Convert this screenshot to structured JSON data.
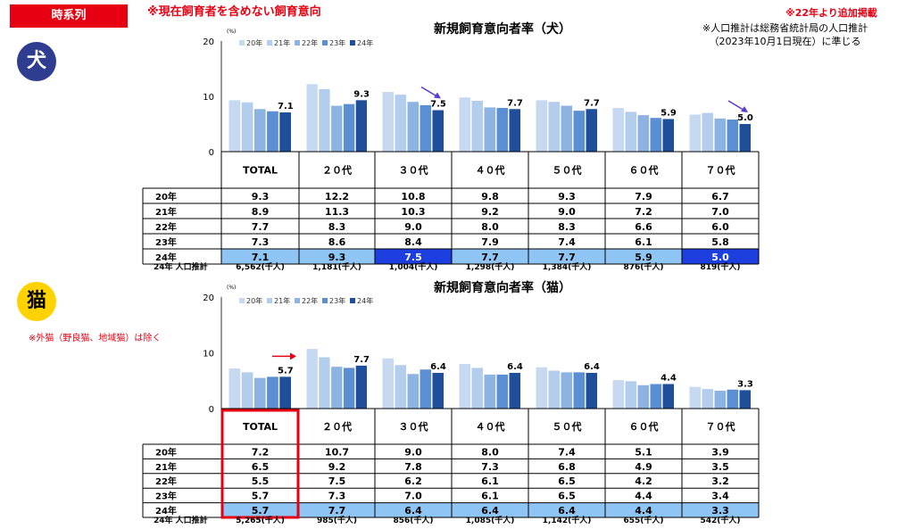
{
  "header": {
    "tag_label": "時系列",
    "note_top": "※現在飼育者を含めない飼育意向",
    "note_added": "※22年より追加掲載",
    "note_population": [
      "※人口推計は総務省統計局の人口推計",
      "（2023年10月1日現在）に準じる"
    ]
  },
  "dog": {
    "icon_label": "犬"
  },
  "cat": {
    "icon_label": "猫",
    "note": "※外猫（野良猫、地域猫）は除く"
  },
  "colors": {
    "series": [
      "#c6d9f1",
      "#b3cdec",
      "#8db3e2",
      "#5a8fd4",
      "#1f4e9a"
    ],
    "highlight_light": "#8fc5f4",
    "highlight_dark": "#1e3fe0",
    "arrow_blue": "#5b37d6",
    "arrow_red": "#e60012",
    "frame_red": "#e60012"
  },
  "chart_data": [
    {
      "type": "bar",
      "title": "新規飼育意向者率（犬）",
      "unit": "(%)",
      "ylim": [
        0,
        20
      ],
      "yticks": [
        0,
        10,
        20
      ],
      "categories": [
        "TOTAL",
        "２０代",
        "３０代",
        "４０代",
        "５０代",
        "６０代",
        "７０代"
      ],
      "series": [
        {
          "name": "20年",
          "values": [
            9.3,
            12.2,
            10.8,
            9.8,
            9.3,
            7.9,
            6.7
          ]
        },
        {
          "name": "21年",
          "values": [
            8.9,
            11.3,
            10.3,
            9.2,
            9.0,
            7.2,
            7.0
          ]
        },
        {
          "name": "22年",
          "values": [
            7.7,
            8.3,
            9.0,
            8.0,
            8.3,
            6.6,
            6.0
          ]
        },
        {
          "name": "23年",
          "values": [
            7.3,
            8.6,
            8.4,
            7.9,
            7.4,
            6.1,
            5.8
          ]
        },
        {
          "name": "24年",
          "values": [
            7.1,
            9.3,
            7.5,
            7.7,
            7.7,
            5.9,
            5.0
          ]
        }
      ],
      "table_rows": [
        {
          "label": "20年",
          "values": [
            "9.3",
            "12.2",
            "10.8",
            "9.8",
            "9.3",
            "7.9",
            "6.7"
          ]
        },
        {
          "label": "21年",
          "values": [
            "8.9",
            "11.3",
            "10.3",
            "9.2",
            "9.0",
            "7.2",
            "7.0"
          ]
        },
        {
          "label": "22年",
          "values": [
            "7.7",
            "8.3",
            "9.0",
            "8.0",
            "8.3",
            "6.6",
            "6.0"
          ]
        },
        {
          "label": "23年",
          "values": [
            "7.3",
            "8.6",
            "8.4",
            "7.9",
            "7.4",
            "6.1",
            "5.8"
          ]
        },
        {
          "label": "24年",
          "values": [
            "7.1",
            "9.3",
            "7.5",
            "7.7",
            "7.7",
            "5.9",
            "5.0"
          ]
        }
      ],
      "highlight_dark_columns": [
        2,
        6
      ],
      "down_arrow_columns": [
        2,
        6
      ],
      "population_label": "24年 人口推計",
      "population": [
        "6,562(千人)",
        "1,181(千人)",
        "1,004(千人)",
        "1,298(千人)",
        "1,384(千人)",
        "876(千人)",
        "819(千人)"
      ]
    },
    {
      "type": "bar",
      "title": "新規飼育意向者率（猫）",
      "unit": "(%)",
      "ylim": [
        0,
        20
      ],
      "yticks": [
        0,
        10,
        20
      ],
      "categories": [
        "TOTAL",
        "２０代",
        "３０代",
        "４０代",
        "５０代",
        "６０代",
        "７０代"
      ],
      "series": [
        {
          "name": "20年",
          "values": [
            7.2,
            10.7,
            9.0,
            8.0,
            7.4,
            5.1,
            3.9
          ]
        },
        {
          "name": "21年",
          "values": [
            6.5,
            9.2,
            7.8,
            7.3,
            6.8,
            4.9,
            3.5
          ]
        },
        {
          "name": "22年",
          "values": [
            5.5,
            7.5,
            6.2,
            6.1,
            6.5,
            4.2,
            3.2
          ]
        },
        {
          "name": "23年",
          "values": [
            5.7,
            7.3,
            7.0,
            6.1,
            6.5,
            4.4,
            3.4
          ]
        },
        {
          "name": "24年",
          "values": [
            5.7,
            7.7,
            6.4,
            6.4,
            6.4,
            4.4,
            3.3
          ]
        }
      ],
      "table_rows": [
        {
          "label": "20年",
          "values": [
            "7.2",
            "10.7",
            "9.0",
            "8.0",
            "7.4",
            "5.1",
            "3.9"
          ]
        },
        {
          "label": "21年",
          "values": [
            "6.5",
            "9.2",
            "7.8",
            "7.3",
            "6.8",
            "4.9",
            "3.5"
          ]
        },
        {
          "label": "22年",
          "values": [
            "5.5",
            "7.5",
            "6.2",
            "6.1",
            "6.5",
            "4.2",
            "3.2"
          ]
        },
        {
          "label": "23年",
          "values": [
            "5.7",
            "7.3",
            "7.0",
            "6.1",
            "6.5",
            "4.4",
            "3.4"
          ]
        },
        {
          "label": "24年",
          "values": [
            "5.7",
            "7.7",
            "6.4",
            "6.4",
            "6.4",
            "4.4",
            "3.3"
          ]
        }
      ],
      "highlight_dark_columns": [],
      "right_arrow_columns": [
        0
      ],
      "red_frame_column": 0,
      "population_label": "24年 人口推計",
      "population": [
        "5,265(千人)",
        "985(千人)",
        "856(千人)",
        "1,085(千人)",
        "1,142(千人)",
        "655(千人)",
        "542(千人)"
      ]
    }
  ]
}
